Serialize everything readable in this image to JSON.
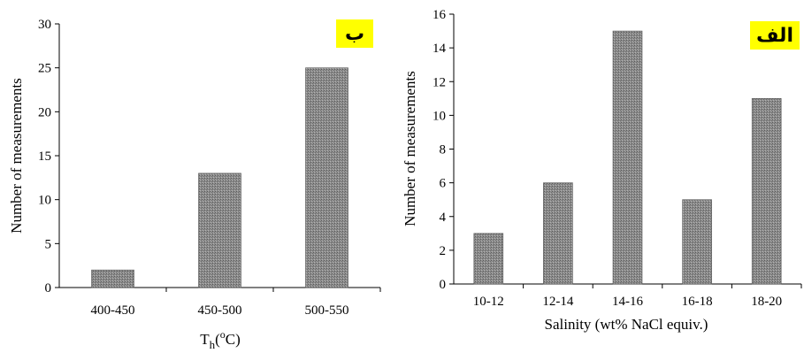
{
  "colors": {
    "bar": "#8a8a8a",
    "badge": "#ffff00",
    "axis": "#000000"
  },
  "chart_data": [
    {
      "type": "bar",
      "title": "",
      "badge": "ب",
      "categories": [
        "400-450",
        "450-500",
        "500-550"
      ],
      "values": [
        2,
        13,
        25
      ],
      "xlabel_main": "T",
      "xlabel_sub": "h",
      "xlabel_open": "(",
      "xlabel_sup": "o",
      "xlabel_close": "C)",
      "ylabel": "Number of measurements",
      "ylim": [
        0,
        30
      ],
      "yticks": [
        "0",
        "5",
        "10",
        "15",
        "20",
        "25",
        "30"
      ],
      "grid": false
    },
    {
      "type": "bar",
      "title": "",
      "badge": "الف",
      "categories": [
        "10-12",
        "12-14",
        "14-16",
        "16-18",
        "18-20"
      ],
      "values": [
        3,
        6,
        15,
        5,
        11
      ],
      "xlabel": "Salinity (wt% NaCl equiv.)",
      "ylabel": "Number of measurements",
      "ylim": [
        0,
        16
      ],
      "yticks": [
        "0",
        "2",
        "4",
        "6",
        "8",
        "10",
        "12",
        "14",
        "16"
      ],
      "grid": false
    }
  ]
}
